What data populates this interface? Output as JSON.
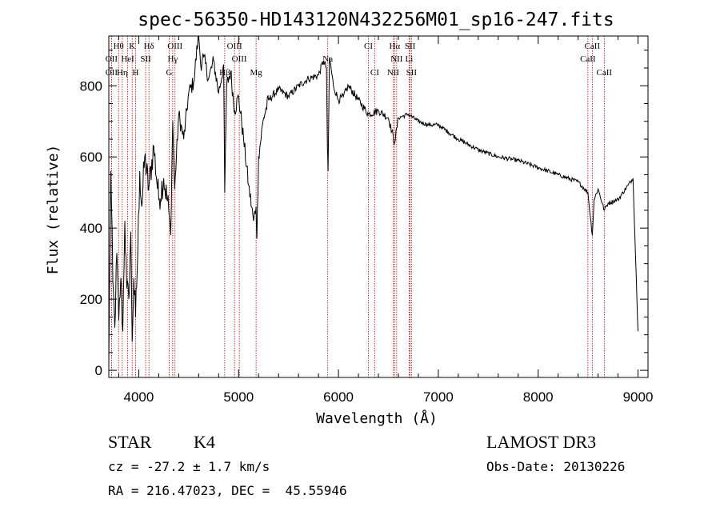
{
  "chart_data": {
    "type": "line",
    "title": "spec-56350-HD143120N432256M01_sp16-247.fits",
    "xlabel": "Wavelength (Å)",
    "ylabel": "Flux (relative)",
    "xlim": [
      3700,
      9100
    ],
    "ylim": [
      -20,
      940
    ],
    "xticks": [
      4000,
      5000,
      6000,
      7000,
      8000,
      9000
    ],
    "yticks": [
      0,
      200,
      400,
      600,
      800
    ],
    "series": [
      {
        "name": "spectrum",
        "x": [
          3700,
          3720,
          3740,
          3760,
          3780,
          3800,
          3820,
          3840,
          3860,
          3880,
          3900,
          3920,
          3934,
          3950,
          3968,
          3990,
          4010,
          4030,
          4060,
          4100,
          4150,
          4200,
          4250,
          4300,
          4320,
          4340,
          4360,
          4400,
          4450,
          4500,
          4550,
          4600,
          4620,
          4650,
          4700,
          4750,
          4800,
          4850,
          4861,
          4880,
          4920,
          4960,
          5000,
          5050,
          5100,
          5150,
          5175,
          5183,
          5200,
          5250,
          5300,
          5400,
          5500,
          5600,
          5700,
          5800,
          5850,
          5880,
          5890,
          5896,
          5910,
          5950,
          6000,
          6050,
          6100,
          6200,
          6300,
          6400,
          6500,
          6563,
          6600,
          6700,
          6800,
          6900,
          7000,
          7100,
          7200,
          7400,
          7600,
          7800,
          8000,
          8200,
          8400,
          8498,
          8542,
          8560,
          8600,
          8662,
          8700,
          8800,
          8900,
          8950,
          9000
        ],
        "values": [
          20,
          560,
          250,
          120,
          330,
          140,
          260,
          110,
          420,
          230,
          200,
          390,
          80,
          260,
          150,
          330,
          560,
          460,
          600,
          510,
          630,
          480,
          540,
          450,
          380,
          700,
          510,
          720,
          650,
          780,
          810,
          950,
          860,
          880,
          820,
          870,
          780,
          860,
          500,
          800,
          840,
          730,
          770,
          650,
          520,
          420,
          460,
          370,
          600,
          710,
          760,
          790,
          770,
          800,
          820,
          830,
          870,
          850,
          620,
          560,
          880,
          800,
          760,
          770,
          800,
          760,
          720,
          730,
          710,
          640,
          710,
          720,
          700,
          690,
          690,
          670,
          650,
          620,
          600,
          590,
          570,
          550,
          530,
          500,
          380,
          480,
          510,
          450,
          470,
          480,
          520,
          540,
          110
        ]
      }
    ],
    "line_labels": [
      {
        "name": "Hθ",
        "wavelength": 3798,
        "row": 1
      },
      {
        "name": "K",
        "wavelength": 3934,
        "row": 1
      },
      {
        "name": "Hδ",
        "wavelength": 4102,
        "row": 1
      },
      {
        "name": "OIII",
        "wavelength": 4363,
        "row": 1
      },
      {
        "name": "OIII",
        "wavelength": 4959,
        "row": 1
      },
      {
        "name": "CI",
        "wavelength": 6300,
        "row": 1
      },
      {
        "name": "Hα",
        "wavelength": 6563,
        "row": 1
      },
      {
        "name": "SII",
        "wavelength": 6717,
        "row": 1
      },
      {
        "name": "CaII",
        "wavelength": 8542,
        "row": 1
      },
      {
        "name": "OII",
        "wavelength": 3727,
        "row": 2
      },
      {
        "name": "HeI",
        "wavelength": 3889,
        "row": 2
      },
      {
        "name": "SII",
        "wavelength": 4069,
        "row": 2
      },
      {
        "name": "Hγ",
        "wavelength": 4340,
        "row": 2
      },
      {
        "name": "OIII",
        "wavelength": 5007,
        "row": 2
      },
      {
        "name": "Na",
        "wavelength": 5893,
        "row": 2
      },
      {
        "name": "NII",
        "wavelength": 6583,
        "row": 2
      },
      {
        "name": "Li",
        "wavelength": 6708,
        "row": 2
      },
      {
        "name": "CaII",
        "wavelength": 8498,
        "row": 2
      },
      {
        "name": "OII",
        "wavelength": 3727,
        "row": 3
      },
      {
        "name": "Hη",
        "wavelength": 3835,
        "row": 3
      },
      {
        "name": "H",
        "wavelength": 3968,
        "row": 3
      },
      {
        "name": "G",
        "wavelength": 4305,
        "row": 3
      },
      {
        "name": "Hβ",
        "wavelength": 4861,
        "row": 3
      },
      {
        "name": "Mg",
        "wavelength": 5175,
        "row": 3
      },
      {
        "name": "CI",
        "wavelength": 6363,
        "row": 3
      },
      {
        "name": "NII",
        "wavelength": 6548,
        "row": 3
      },
      {
        "name": "SII",
        "wavelength": 6731,
        "row": 3
      },
      {
        "name": "CaII",
        "wavelength": 8662,
        "row": 3
      }
    ]
  },
  "info": {
    "class_label": "STAR",
    "subclass": "K4",
    "survey": "LAMOST DR3",
    "cz": "cz = -27.2 ± 1.7 km/s",
    "obs_date": "Obs-Date: 20130226",
    "coords": "RA = 216.47023, DEC =  45.55946"
  },
  "colors": {
    "line_marker": "#b00000",
    "spectrum": "#000000"
  }
}
